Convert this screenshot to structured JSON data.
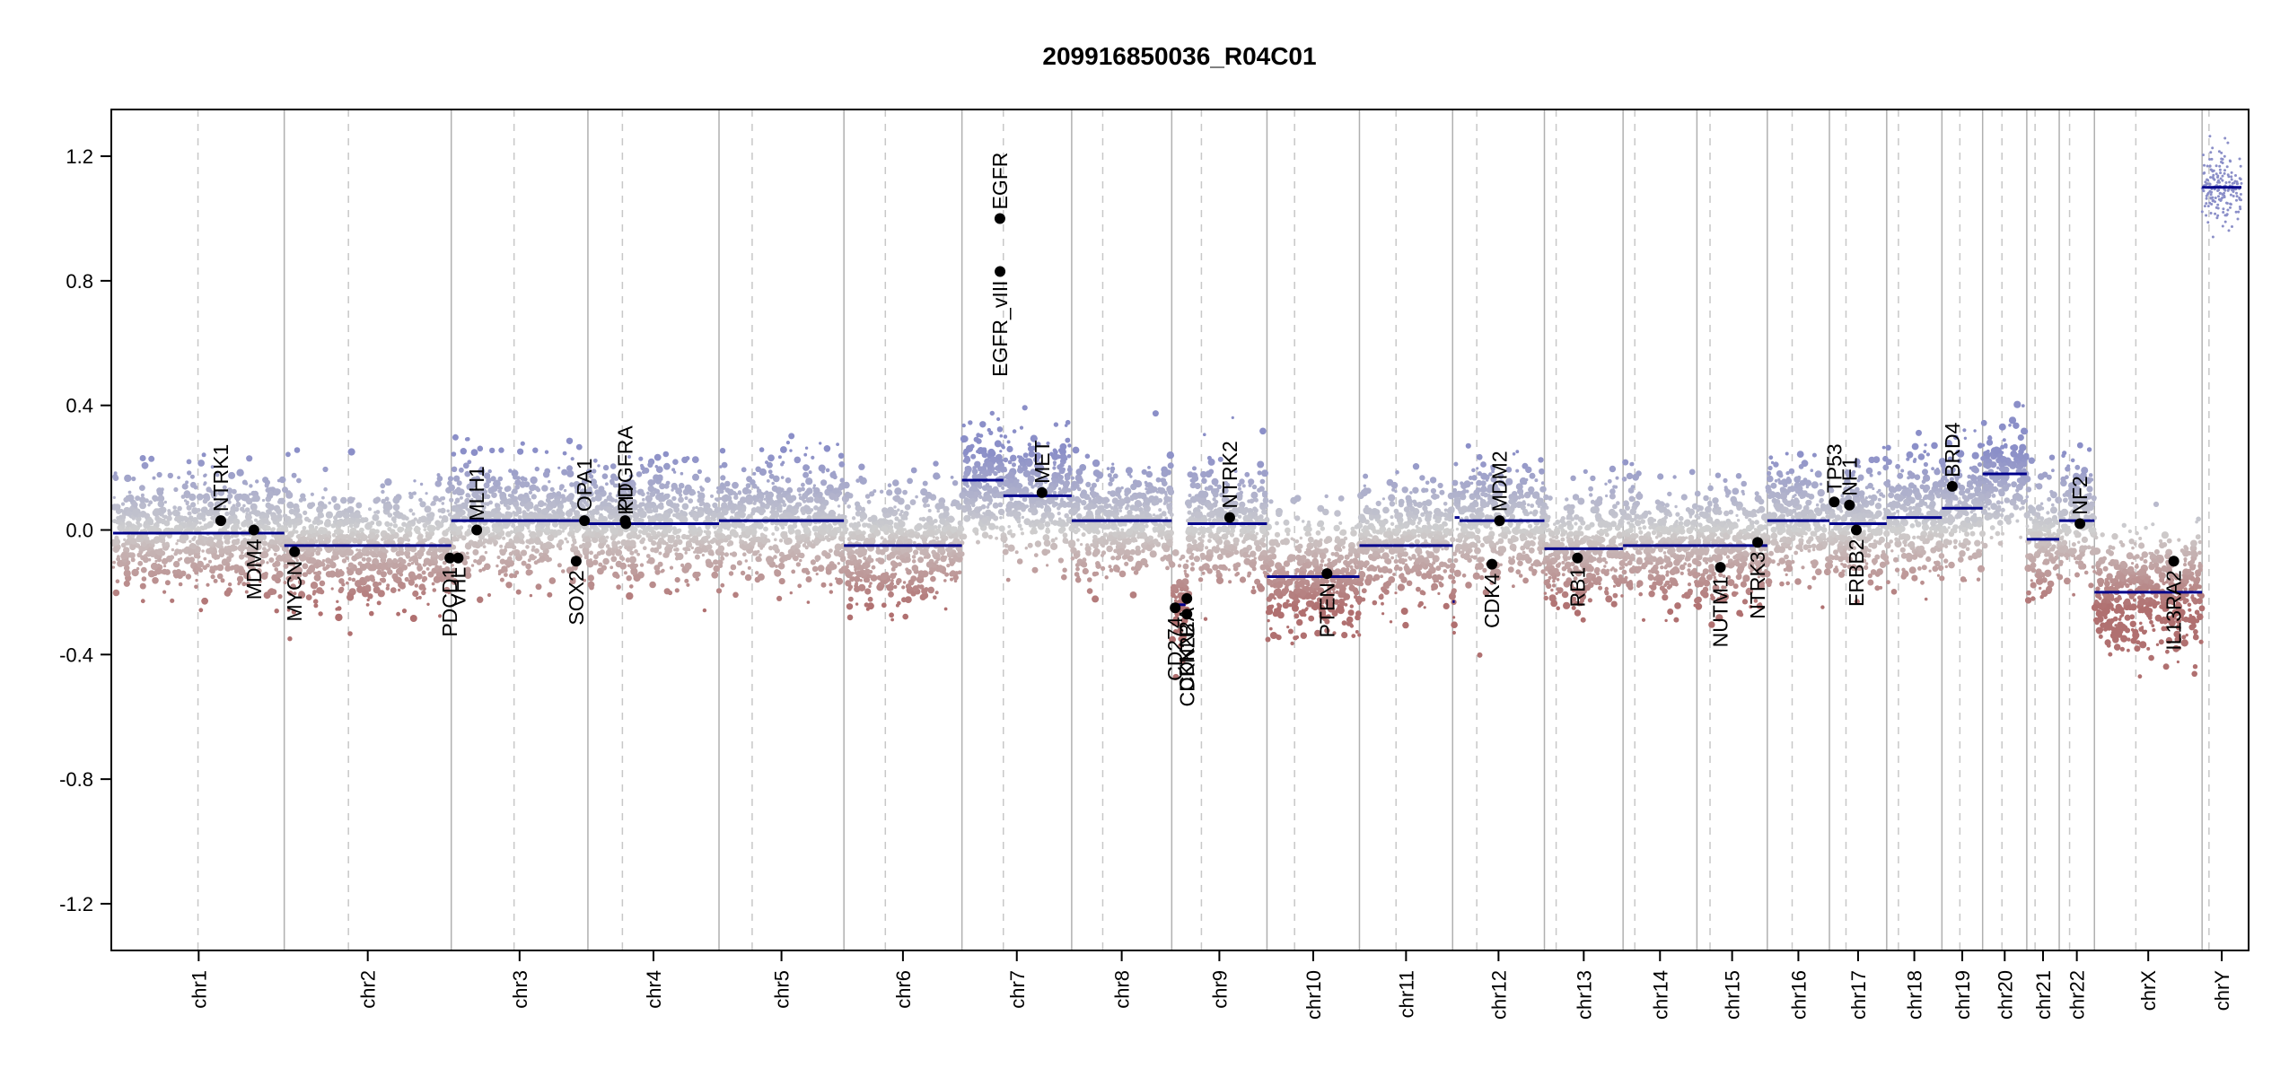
{
  "chart_data": {
    "type": "scatter",
    "title": "209916850036_R04C01",
    "xlabel": "",
    "ylabel": "",
    "ylim": [
      -1.35,
      1.35
    ],
    "yticks": [
      "-1.2",
      "-0.8",
      "-0.4",
      "0.0",
      "0.4",
      "0.8",
      "1.2"
    ],
    "ytick_values": [
      -1.2,
      -0.8,
      -0.4,
      0.0,
      0.4,
      0.8,
      1.2
    ],
    "colors": {
      "gain": "#8b8fc8",
      "neutral": "#cfcfcf",
      "loss": "#b07070",
      "segment": "#00008b"
    },
    "chromosomes": [
      {
        "name": "chr1",
        "len": 248,
        "cen": 123,
        "seg": -0.01
      },
      {
        "name": "chr2",
        "len": 242,
        "cen": 93,
        "seg": -0.05
      },
      {
        "name": "chr3",
        "len": 198,
        "cen": 91,
        "seg": 0.03
      },
      {
        "name": "chr4",
        "len": 190,
        "cen": 50,
        "seg": 0.02
      },
      {
        "name": "chr5",
        "len": 181,
        "cen": 48,
        "seg": 0.03
      },
      {
        "name": "chr6",
        "len": 171,
        "cen": 60,
        "seg": -0.05
      },
      {
        "name": "chr7",
        "len": 159,
        "cen": 60,
        "seg": 0.11
      },
      {
        "name": "chr8",
        "len": 145,
        "cen": 45,
        "seg": 0.03
      },
      {
        "name": "chr9",
        "len": 138,
        "cen": 43,
        "seg": 0.02
      },
      {
        "name": "chr10",
        "len": 134,
        "cen": 40,
        "seg": -0.15
      },
      {
        "name": "chr11",
        "len": 135,
        "cen": 53,
        "seg": -0.05
      },
      {
        "name": "chr12",
        "len": 133,
        "cen": 35,
        "seg": 0.03
      },
      {
        "name": "chr13",
        "len": 114,
        "cen": 17,
        "seg": -0.06
      },
      {
        "name": "chr14",
        "len": 107,
        "cen": 17,
        "seg": -0.05
      },
      {
        "name": "chr15",
        "len": 102,
        "cen": 19,
        "seg": -0.05
      },
      {
        "name": "chr16",
        "len": 90,
        "cen": 36,
        "seg": 0.03
      },
      {
        "name": "chr17",
        "len": 83,
        "cen": 24,
        "seg": 0.02
      },
      {
        "name": "chr18",
        "len": 80,
        "cen": 17,
        "seg": 0.04
      },
      {
        "name": "chr19",
        "len": 59,
        "cen": 26,
        "seg": 0.07
      },
      {
        "name": "chr20",
        "len": 64,
        "cen": 28,
        "seg": 0.18
      },
      {
        "name": "chr21",
        "len": 47,
        "cen": 12,
        "seg": -0.03
      },
      {
        "name": "chr22",
        "len": 51,
        "cen": 15,
        "seg": 0.03
      },
      {
        "name": "chrX",
        "len": 156,
        "cen": 60,
        "seg": -0.2
      },
      {
        "name": "chrY",
        "len": 57,
        "cen": 10,
        "seg": 1.1
      }
    ],
    "sub_segments": [
      {
        "chr": "chr7",
        "start": 0,
        "end": 60,
        "value": 0.16
      },
      {
        "chr": "chr9",
        "start": 0,
        "end": 20,
        "value": -0.24
      },
      {
        "chr": "chr9",
        "start": 20,
        "end": 23,
        "value": -0.22
      },
      {
        "chr": "chr12",
        "start": 0,
        "end": 3,
        "value": -0.23
      },
      {
        "chr": "chr12",
        "start": 3,
        "end": 10,
        "value": 0.04
      }
    ],
    "genes": [
      {
        "name": "NTRK1",
        "chr": "chr1",
        "pos": 156,
        "value": 0.03,
        "label_side": "above"
      },
      {
        "name": "MDM4",
        "chr": "chr1",
        "pos": 204,
        "value": 0.0,
        "label_side": "below"
      },
      {
        "name": "MYCN",
        "chr": "chr2",
        "pos": 15,
        "value": -0.07,
        "label_side": "below"
      },
      {
        "name": "PDCD1",
        "chr": "chr2",
        "pos": 240,
        "value": -0.09,
        "label_side": "below"
      },
      {
        "name": "VHL",
        "chr": "chr3",
        "pos": 10,
        "value": -0.09,
        "label_side": "below"
      },
      {
        "name": "MLH1",
        "chr": "chr3",
        "pos": 37,
        "value": 0.0,
        "label_side": "above"
      },
      {
        "name": "SOX2",
        "chr": "chr3",
        "pos": 181,
        "value": -0.1,
        "label_side": "below"
      },
      {
        "name": "OPA1",
        "chr": "chr3",
        "pos": 193,
        "value": 0.03,
        "label_side": "above"
      },
      {
        "name": "PDGFRA",
        "chr": "chr4",
        "pos": 54,
        "value": 0.03,
        "label_side": "above"
      },
      {
        "name": "KIT",
        "chr": "chr4",
        "pos": 55,
        "value": 0.02,
        "label_side": "above"
      },
      {
        "name": "EGFR",
        "chr": "chr7",
        "pos": 55,
        "value": 1.0,
        "label_side": "above"
      },
      {
        "name": "EGFR_vIII",
        "chr": "chr7",
        "pos": 55.2,
        "value": 0.83,
        "label_side": "below"
      },
      {
        "name": "MET",
        "chr": "chr7",
        "pos": 116,
        "value": 0.12,
        "label_side": "above"
      },
      {
        "name": "CD274",
        "chr": "chr9",
        "pos": 5,
        "value": -0.25,
        "label_side": "below"
      },
      {
        "name": "CDKN2A",
        "chr": "chr9",
        "pos": 21.9,
        "value": -0.22,
        "label_side": "below"
      },
      {
        "name": "CDKN2B",
        "chr": "chr9",
        "pos": 22.0,
        "value": -0.27,
        "label_side": "below"
      },
      {
        "name": "NTRK2",
        "chr": "chr9",
        "pos": 84,
        "value": 0.04,
        "label_side": "above"
      },
      {
        "name": "PTEN",
        "chr": "chr10",
        "pos": 87,
        "value": -0.14,
        "label_side": "below"
      },
      {
        "name": "CDK4",
        "chr": "chr12",
        "pos": 57,
        "value": -0.11,
        "label_side": "below"
      },
      {
        "name": "MDM2",
        "chr": "chr12",
        "pos": 68,
        "value": 0.03,
        "label_side": "above"
      },
      {
        "name": "RB1",
        "chr": "chr13",
        "pos": 48,
        "value": -0.09,
        "label_side": "below"
      },
      {
        "name": "NUTM1",
        "chr": "chr15",
        "pos": 34,
        "value": -0.12,
        "label_side": "below"
      },
      {
        "name": "NTRK3",
        "chr": "chr15",
        "pos": 88,
        "value": -0.04,
        "label_side": "below"
      },
      {
        "name": "TP53",
        "chr": "chr17",
        "pos": 7,
        "value": 0.09,
        "label_side": "above"
      },
      {
        "name": "NF1",
        "chr": "chr17",
        "pos": 29,
        "value": 0.08,
        "label_side": "above"
      },
      {
        "name": "ERBB2",
        "chr": "chr17",
        "pos": 39,
        "value": 0.0,
        "label_side": "below"
      },
      {
        "name": "BRD4",
        "chr": "chr19",
        "pos": 15,
        "value": 0.14,
        "label_side": "above"
      },
      {
        "name": "NF2",
        "chr": "chr22",
        "pos": 30,
        "value": 0.02,
        "label_side": "above"
      },
      {
        "name": "IL13RA2",
        "chr": "chrX",
        "pos": 115,
        "value": -0.1,
        "label_side": "below"
      }
    ]
  }
}
